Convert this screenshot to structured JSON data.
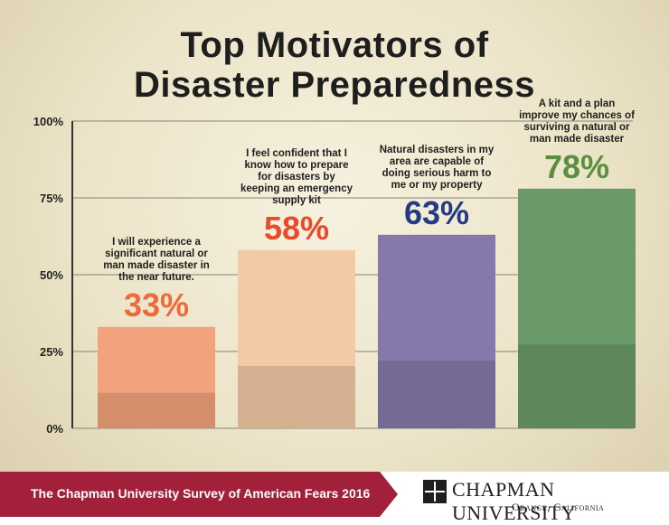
{
  "title_line1": "Top Motivators of",
  "title_line2": "Disaster Preparedness",
  "chart_data": {
    "type": "bar",
    "title": "Top Motivators of Disaster Preparedness",
    "categories": [
      "I will experience a significant natural or man made disaster in the near future.",
      "I feel confident that I know how to prepare for disasters by keeping an emergency supply kit",
      "Natural disasters in my area are capable of doing serious harm to me or my property",
      "A kit and a plan improve my chances of surviving a natural or man made disaster"
    ],
    "values": [
      33,
      58,
      63,
      78
    ],
    "value_labels": [
      "33%",
      "58%",
      "63%",
      "78%"
    ],
    "label_lines": [
      [
        "I will experience a",
        "significant natural or",
        "man made disaster in",
        "the near future."
      ],
      [
        "I feel confident that I",
        "know how to prepare",
        "for disasters by",
        "keeping an emergency",
        "supply kit"
      ],
      [
        "Natural disasters in my",
        "area are capable of",
        "doing serious harm to",
        "me or my property"
      ],
      [
        "A kit and a plan",
        "improve my chances of",
        "surviving a natural or",
        "man made disaster"
      ]
    ],
    "ylim": [
      0,
      100
    ],
    "yticks": [
      0,
      25,
      50,
      75,
      100
    ],
    "ytick_labels": [
      "0%",
      "25%",
      "50%",
      "75%",
      "100%"
    ],
    "grid": true,
    "colors": {
      "value_1": "#ec6a3c",
      "value_2": "#e84a2c",
      "value_3": "#253a84",
      "value_4": "#5a8f3f",
      "bar_1": "#f2a27c",
      "bar_2": "#f3c9a6",
      "bar_3": "#8678aa",
      "bar_4": "#6b9a6a"
    }
  },
  "footer": {
    "survey_title": "The Chapman University Survey of American Fears 2016",
    "university_name": "CHAPMAN UNIVERSITY",
    "university_location": "Orange, California",
    "band_color": "#a3203a"
  }
}
